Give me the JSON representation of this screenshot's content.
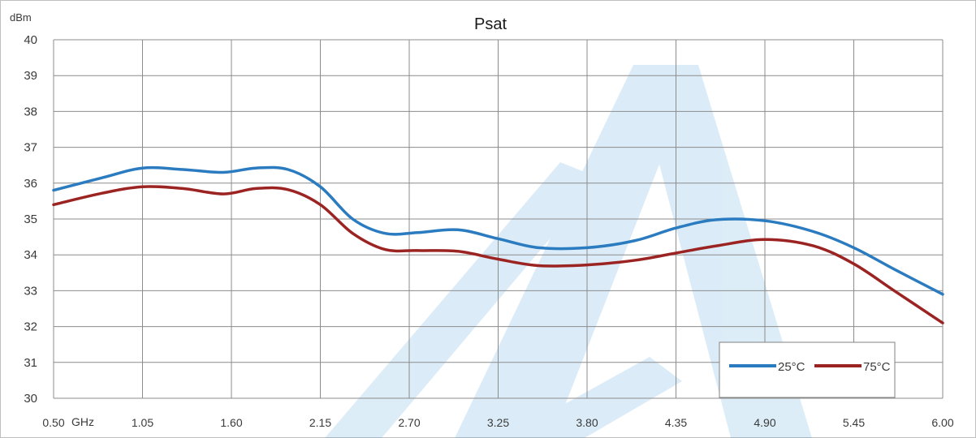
{
  "chart_data": {
    "type": "line",
    "title": "Psat",
    "y_unit_label": "dBm",
    "x_unit_label": "GHz",
    "x_tick_labels": [
      "0.50",
      "1.05",
      "1.60",
      "2.15",
      "2.70",
      "3.25",
      "3.80",
      "4.35",
      "4.90",
      "5.45",
      "6.00"
    ],
    "y_tick_labels": [
      "30",
      "31",
      "32",
      "33",
      "34",
      "35",
      "36",
      "37",
      "38",
      "39",
      "40"
    ],
    "xlim": [
      0.5,
      6.0
    ],
    "ylim": [
      30,
      40
    ],
    "grid": true,
    "legend_position": "bottom-right",
    "series": [
      {
        "name": "25°C",
        "color": "#2a7bbf",
        "x": [
          0.5,
          0.8,
          1.05,
          1.3,
          1.55,
          1.75,
          1.95,
          2.15,
          2.35,
          2.55,
          2.75,
          3.0,
          3.25,
          3.5,
          3.8,
          4.1,
          4.35,
          4.6,
          4.9,
          5.2,
          5.45,
          5.7,
          6.0
        ],
        "y": [
          35.8,
          36.15,
          36.42,
          36.38,
          36.3,
          36.42,
          36.38,
          35.9,
          35.0,
          34.6,
          34.62,
          34.7,
          34.45,
          34.2,
          34.2,
          34.4,
          34.75,
          34.98,
          34.95,
          34.65,
          34.2,
          33.6,
          32.9
        ]
      },
      {
        "name": "75°C",
        "color": "#9b2423",
        "x": [
          0.5,
          0.8,
          1.05,
          1.3,
          1.55,
          1.75,
          1.95,
          2.15,
          2.35,
          2.55,
          2.75,
          3.0,
          3.25,
          3.5,
          3.8,
          4.1,
          4.35,
          4.6,
          4.9,
          5.2,
          5.45,
          5.7,
          6.0
        ],
        "y": [
          35.4,
          35.72,
          35.9,
          35.85,
          35.7,
          35.85,
          35.82,
          35.4,
          34.6,
          34.15,
          34.12,
          34.1,
          33.88,
          33.7,
          33.72,
          33.85,
          34.05,
          34.25,
          34.43,
          34.25,
          33.75,
          33.0,
          32.1
        ]
      }
    ]
  }
}
